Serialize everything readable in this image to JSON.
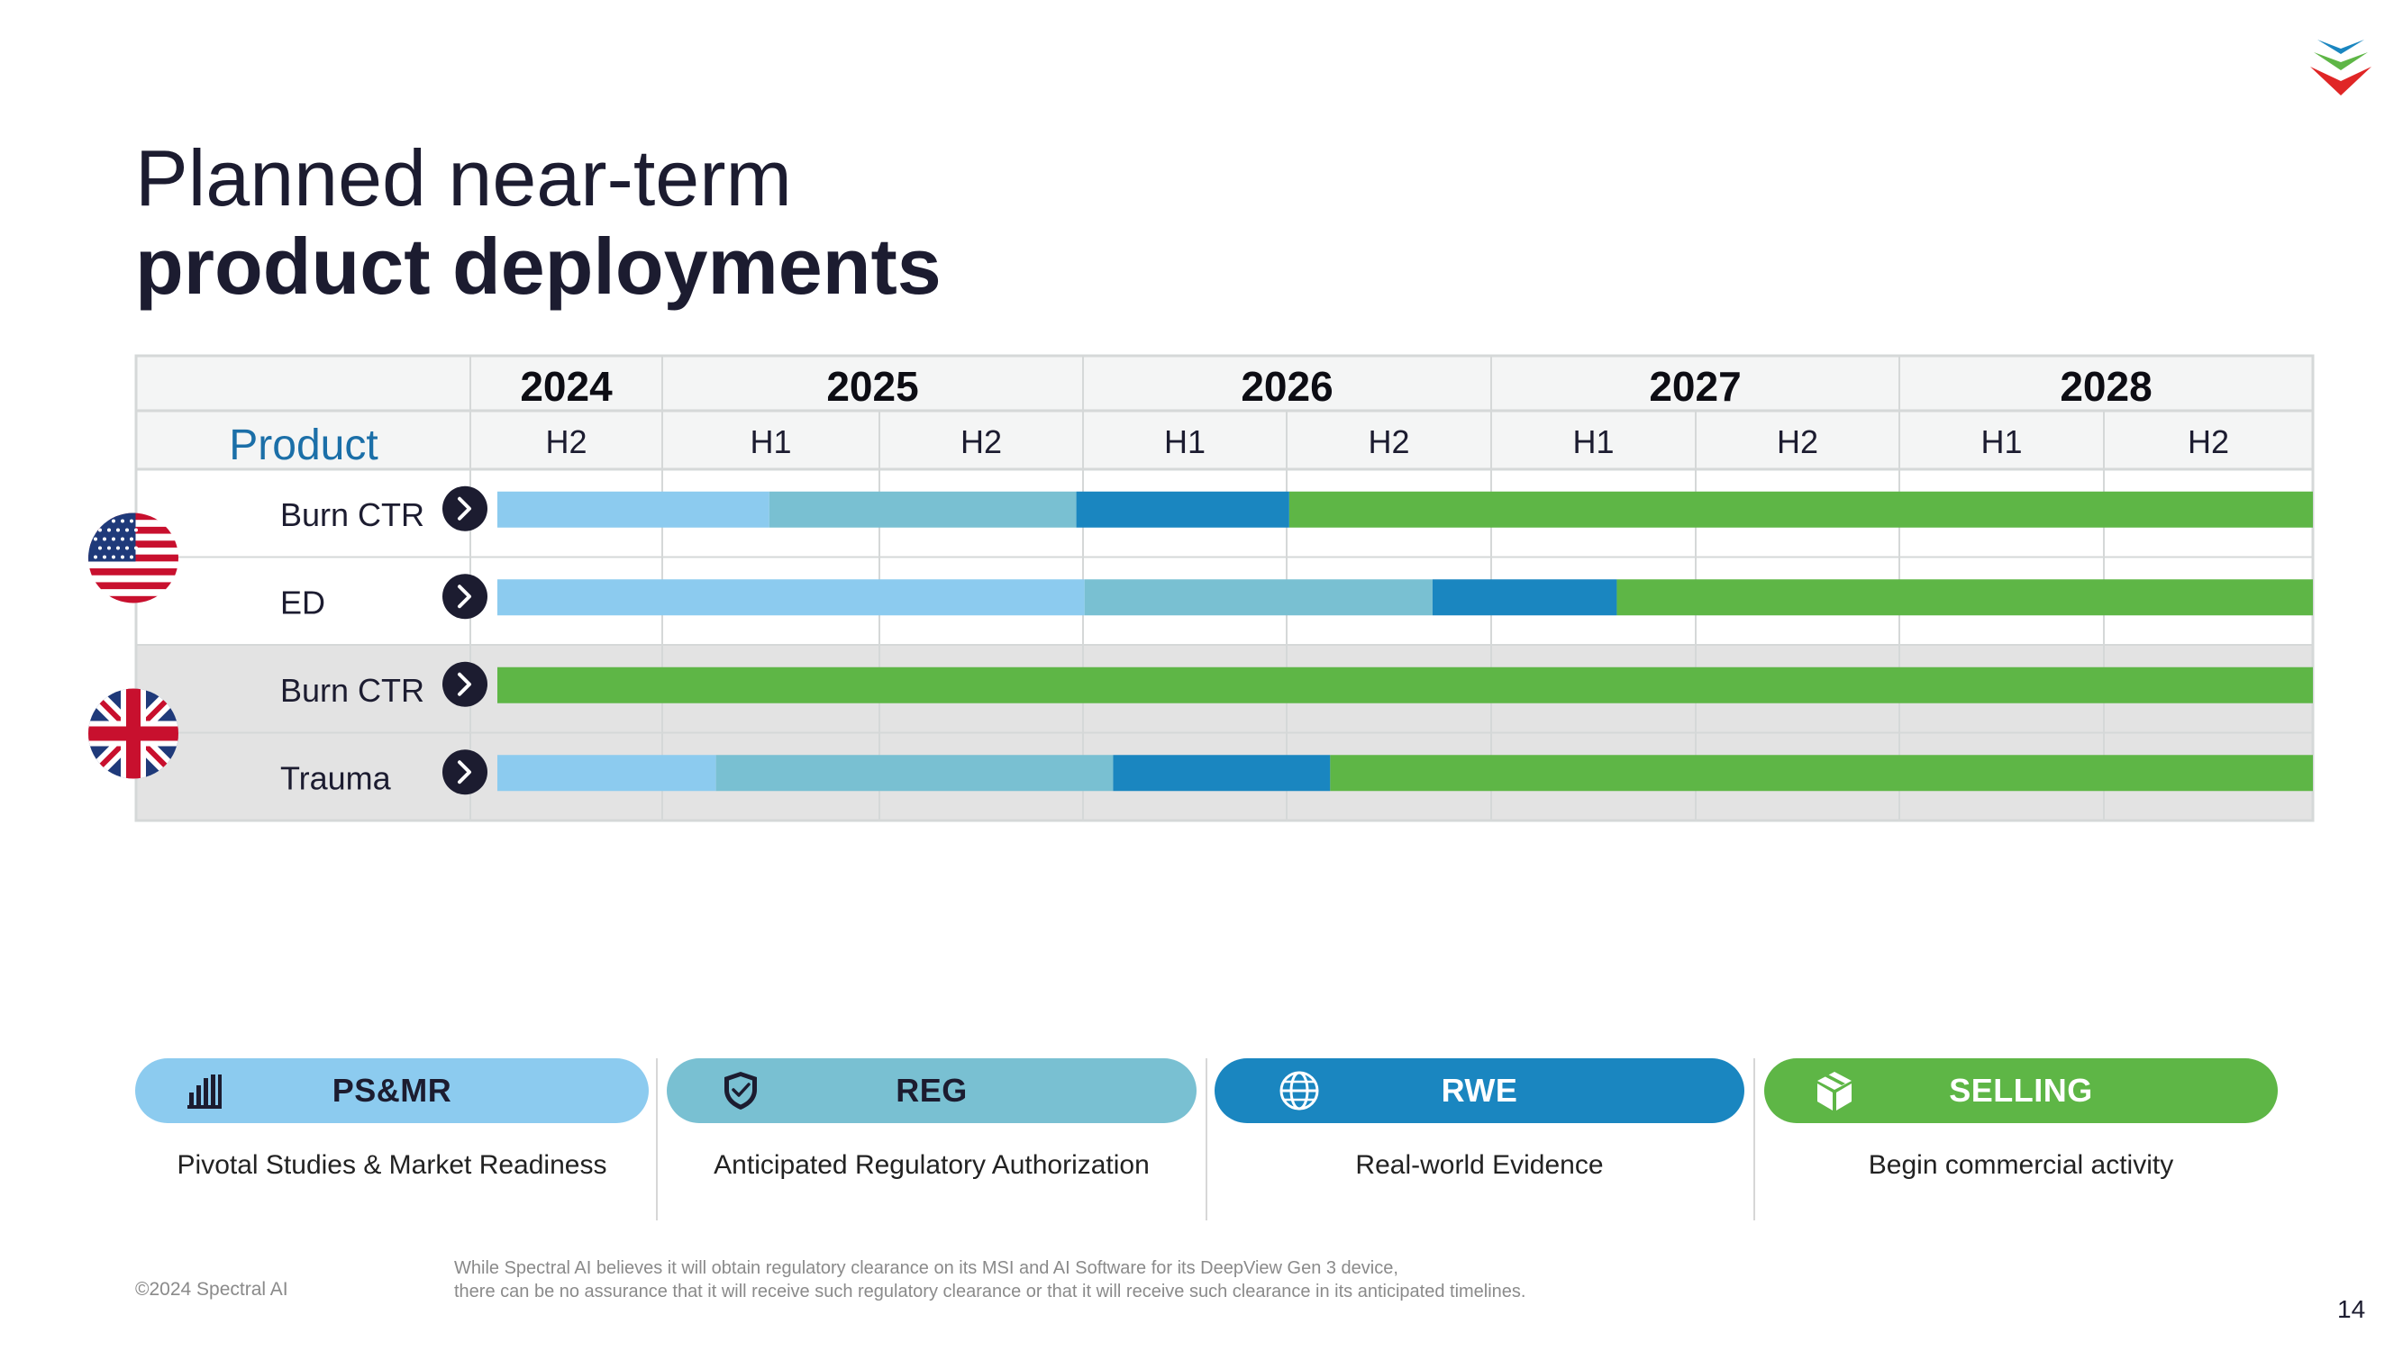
{
  "title": {
    "line1": "Planned near-term",
    "line2": "product deployments"
  },
  "chart_data": {
    "type": "gantt",
    "product_header": "Product",
    "years": [
      "2024",
      "2025",
      "2026",
      "2027",
      "2028"
    ],
    "halves": [
      "H2",
      "H1",
      "H2",
      "H1",
      "H2",
      "H1",
      "H2",
      "H1",
      "H2"
    ],
    "half_years": [
      0,
      1,
      1,
      2,
      2,
      3,
      3,
      4,
      4
    ],
    "time_start": 2024.5,
    "time_end": 2029.0,
    "phases": [
      {
        "key": "psmr",
        "label": "PS&MR",
        "color": "#8ccbef"
      },
      {
        "key": "reg",
        "label": "REG",
        "color": "#79c0d2"
      },
      {
        "key": "rwe",
        "label": "RWE",
        "color": "#1a86c0"
      },
      {
        "key": "selling",
        "label": "SELLING",
        "color": "#5eb646"
      }
    ],
    "groups": [
      {
        "country": "United States",
        "flag": "us-flag-icon",
        "shaded": false,
        "rows": [
          {
            "name": "Burn CTR",
            "segments": [
              {
                "phase": "psmr",
                "start": 2024.5,
                "end": 2025.23
              },
              {
                "phase": "reg",
                "start": 2025.23,
                "end": 2025.98
              },
              {
                "phase": "rwe",
                "start": 2025.98,
                "end": 2026.5
              },
              {
                "phase": "selling",
                "start": 2026.5,
                "end": 2029.0
              }
            ]
          },
          {
            "name": "ED",
            "segments": [
              {
                "phase": "psmr",
                "start": 2024.5,
                "end": 2026.0
              },
              {
                "phase": "reg",
                "start": 2026.0,
                "end": 2026.85
              },
              {
                "phase": "rwe",
                "start": 2026.85,
                "end": 2027.3
              },
              {
                "phase": "selling",
                "start": 2027.3,
                "end": 2029.0
              }
            ]
          }
        ]
      },
      {
        "country": "United Kingdom",
        "flag": "uk-flag-icon",
        "shaded": true,
        "rows": [
          {
            "name": "Burn CTR",
            "segments": [
              {
                "phase": "selling",
                "start": 2024.5,
                "end": 2029.0
              }
            ]
          },
          {
            "name": "Trauma",
            "segments": [
              {
                "phase": "psmr",
                "start": 2024.5,
                "end": 2025.1
              },
              {
                "phase": "reg",
                "start": 2025.1,
                "end": 2026.07
              },
              {
                "phase": "rwe",
                "start": 2026.07,
                "end": 2026.6
              },
              {
                "phase": "selling",
                "start": 2026.6,
                "end": 2029.0
              }
            ]
          }
        ]
      }
    ]
  },
  "legend": [
    {
      "label": "PS&MR",
      "description": "Pivotal Studies & Market Readiness",
      "icon": "bar-chart-icon",
      "color": "#8ccbef",
      "text_color": "#1c1c30"
    },
    {
      "label": "REG",
      "description": "Anticipated Regulatory Authorization",
      "icon": "shield-check-icon",
      "color": "#79c0d2",
      "text_color": "#1c1c30"
    },
    {
      "label": "RWE",
      "description": "Real-world Evidence",
      "icon": "globe-icon",
      "color": "#1a86c0",
      "text_color": "#ffffff"
    },
    {
      "label": "SELLING",
      "description": "Begin commercial activity",
      "icon": "package-icon",
      "color": "#5eb646",
      "text_color": "#ffffff"
    }
  ],
  "footer": {
    "copyright": "©2024 Spectral AI",
    "disclaimer_line1": "While Spectral AI believes it will obtain regulatory clearance on its MSI and AI Software for its DeepView Gen 3 device,",
    "disclaimer_line2": "there can be no assurance that it will receive such regulatory clearance or that it will receive such clearance in its anticipated timelines.",
    "page_number": "14"
  },
  "colors": {
    "navy": "#1c1c30",
    "header_bg": "#f4f5f5",
    "grid": "#d5d8d8",
    "shade": "#e3e3e3",
    "product_header": "#1b6fa8"
  }
}
